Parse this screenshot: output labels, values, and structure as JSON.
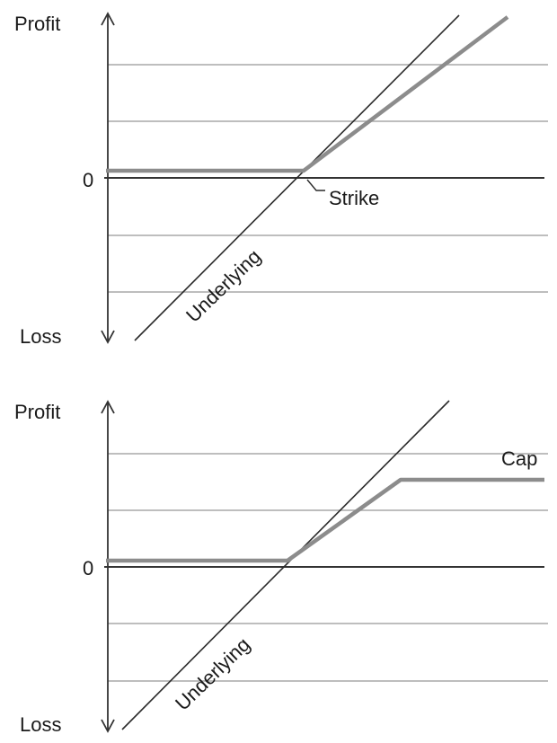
{
  "colors": {
    "background": "#ffffff",
    "axis": "#333333",
    "gridline": "#a8a8a8",
    "underlying_line": "#2a2a2a",
    "payoff_line": "#8c8c8c"
  },
  "panel_top": {
    "y_top_label": "Profit",
    "y_bottom_label": "Loss",
    "zero_label": "0",
    "strike_label": "Strike",
    "underlying_label": "Underlying"
  },
  "panel_bottom": {
    "y_top_label": "Profit",
    "y_bottom_label": "Loss",
    "zero_label": "0",
    "cap_label": "Cap",
    "underlying_label": "Underlying"
  }
}
